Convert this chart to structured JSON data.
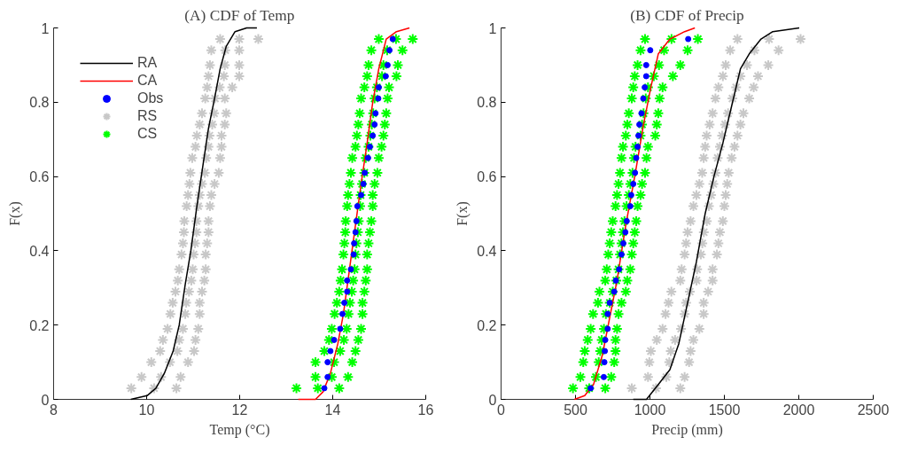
{
  "chart_data": [
    {
      "type": "line",
      "title": "(A) CDF of Temp",
      "xlabel": "Temp (°C)",
      "ylabel": "F(x)",
      "xlim": [
        8,
        16
      ],
      "xticks": [
        8,
        10,
        12,
        14,
        16
      ],
      "ylim": [
        0,
        1
      ],
      "yticks": [
        0,
        0.2,
        0.4,
        0.6,
        0.8,
        1
      ],
      "grid": false,
      "legend": "top left",
      "series": [
        {
          "name": "RA",
          "marker": "none",
          "color": "#000000",
          "x": [
            9.66,
            10.01,
            10.2,
            10.38,
            10.57,
            10.7,
            10.83,
            10.95,
            11.08,
            11.21,
            11.33,
            11.46,
            11.58,
            11.71,
            11.9,
            12.15,
            12.37
          ],
          "values": [
            0,
            0.01,
            0.03,
            0.07,
            0.13,
            0.2,
            0.31,
            0.4,
            0.52,
            0.63,
            0.73,
            0.81,
            0.89,
            0.95,
            0.99,
            1.0,
            1.0
          ]
        },
        {
          "name": "CA",
          "marker": "none",
          "color": "#ff0000",
          "x": [
            13.26,
            13.63,
            13.79,
            13.95,
            14.11,
            14.23,
            14.36,
            14.49,
            14.61,
            14.74,
            14.86,
            14.99,
            15.15,
            15.37,
            15.65
          ],
          "values": [
            0,
            0.0,
            0.02,
            0.07,
            0.15,
            0.23,
            0.35,
            0.47,
            0.58,
            0.69,
            0.8,
            0.89,
            0.97,
            0.99,
            1.0
          ]
        },
        {
          "name": "Obs",
          "type": "scatter",
          "marker": "circle",
          "color": "#0000ff",
          "x": [
            13.82,
            13.89,
            13.89,
            13.95,
            14.03,
            14.16,
            14.21,
            14.25,
            14.31,
            14.31,
            14.39,
            14.45,
            14.46,
            14.49,
            14.51,
            14.53,
            14.61,
            14.66,
            14.69,
            14.76,
            14.8,
            14.86,
            14.9,
            14.92,
            14.98,
            14.99,
            15.14,
            15.18,
            15.22,
            15.29
          ],
          "values": [
            0.03,
            0.06,
            0.1,
            0.13,
            0.16,
            0.19,
            0.23,
            0.26,
            0.29,
            0.32,
            0.35,
            0.39,
            0.42,
            0.45,
            0.48,
            0.52,
            0.55,
            0.58,
            0.61,
            0.65,
            0.68,
            0.71,
            0.74,
            0.77,
            0.81,
            0.84,
            0.87,
            0.9,
            0.94,
            0.97
          ]
        },
        {
          "name": "RS",
          "type": "scatter",
          "marker": "cross",
          "color": "#c8c8c8",
          "x": [
            9.67,
            10.16,
            10.64,
            9.89,
            10.31,
            10.73,
            10.1,
            10.5,
            10.89,
            10.29,
            10.66,
            11.02,
            10.35,
            10.7,
            11.05,
            10.45,
            10.78,
            11.11,
            10.51,
            10.83,
            11.14,
            10.56,
            10.85,
            11.14,
            10.62,
            10.91,
            11.19,
            10.67,
            10.96,
            11.24,
            10.7,
            10.99,
            11.27,
            10.75,
            11.01,
            11.27,
            10.78,
            11.04,
            11.3,
            10.8,
            11.07,
            11.33,
            10.81,
            11.07,
            11.33,
            10.86,
            11.11,
            11.36,
            10.89,
            11.14,
            11.39,
            10.92,
            11.19,
            11.46,
            10.94,
            11.25,
            11.55,
            10.98,
            11.28,
            11.58,
            11.05,
            11.33,
            11.61,
            11.08,
            11.35,
            11.61,
            11.14,
            11.41,
            11.68,
            11.19,
            11.45,
            11.71,
            11.26,
            11.47,
            11.68,
            11.3,
            11.57,
            11.84,
            11.33,
            11.66,
            11.99,
            11.36,
            11.68,
            11.99,
            11.39,
            11.69,
            11.99,
            11.58,
            11.99,
            12.4
          ],
          "values": [
            0.03,
            0.03,
            0.03,
            0.06,
            0.06,
            0.06,
            0.1,
            0.1,
            0.1,
            0.13,
            0.13,
            0.13,
            0.16,
            0.16,
            0.16,
            0.19,
            0.19,
            0.19,
            0.23,
            0.23,
            0.23,
            0.26,
            0.26,
            0.26,
            0.29,
            0.29,
            0.29,
            0.32,
            0.32,
            0.32,
            0.35,
            0.35,
            0.35,
            0.39,
            0.39,
            0.39,
            0.42,
            0.42,
            0.42,
            0.45,
            0.45,
            0.45,
            0.48,
            0.48,
            0.48,
            0.52,
            0.52,
            0.52,
            0.55,
            0.55,
            0.55,
            0.58,
            0.58,
            0.58,
            0.61,
            0.61,
            0.61,
            0.65,
            0.65,
            0.65,
            0.68,
            0.68,
            0.68,
            0.71,
            0.71,
            0.71,
            0.74,
            0.74,
            0.74,
            0.77,
            0.77,
            0.77,
            0.81,
            0.81,
            0.81,
            0.84,
            0.84,
            0.84,
            0.87,
            0.87,
            0.87,
            0.9,
            0.9,
            0.9,
            0.94,
            0.94,
            0.94,
            0.97,
            0.97,
            0.97
          ]
        },
        {
          "name": "CS",
          "type": "scatter",
          "marker": "cross",
          "color": "#00ff00",
          "x": [
            13.22,
            13.68,
            14.14,
            13.63,
            13.98,
            14.33,
            13.63,
            14.03,
            14.42,
            13.82,
            14.16,
            14.49,
            13.92,
            14.24,
            14.55,
            13.98,
            14.3,
            14.61,
            14.04,
            14.34,
            14.64,
            14.09,
            14.37,
            14.64,
            14.14,
            14.41,
            14.68,
            14.17,
            14.44,
            14.71,
            14.2,
            14.47,
            14.74,
            14.23,
            14.49,
            14.74,
            14.25,
            14.51,
            14.77,
            14.27,
            14.54,
            14.8,
            14.28,
            14.56,
            14.83,
            14.31,
            14.59,
            14.86,
            14.33,
            14.6,
            14.86,
            14.36,
            14.63,
            14.9,
            14.39,
            14.68,
            14.96,
            14.42,
            14.71,
            14.99,
            14.49,
            14.77,
            15.05,
            14.52,
            14.81,
            15.09,
            14.55,
            14.84,
            15.12,
            14.58,
            14.87,
            15.15,
            14.61,
            14.9,
            15.18,
            14.68,
            14.95,
            15.21,
            14.74,
            15.06,
            15.37,
            14.77,
            15.09,
            15.4,
            14.83,
            15.17,
            15.5,
            14.99,
            15.36,
            15.72
          ],
          "values": [
            0.03,
            0.03,
            0.03,
            0.06,
            0.06,
            0.06,
            0.1,
            0.1,
            0.1,
            0.13,
            0.13,
            0.13,
            0.16,
            0.16,
            0.16,
            0.19,
            0.19,
            0.19,
            0.23,
            0.23,
            0.23,
            0.26,
            0.26,
            0.26,
            0.29,
            0.29,
            0.29,
            0.32,
            0.32,
            0.32,
            0.35,
            0.35,
            0.35,
            0.39,
            0.39,
            0.39,
            0.42,
            0.42,
            0.42,
            0.45,
            0.45,
            0.45,
            0.48,
            0.48,
            0.48,
            0.52,
            0.52,
            0.52,
            0.55,
            0.55,
            0.55,
            0.58,
            0.58,
            0.58,
            0.61,
            0.61,
            0.61,
            0.65,
            0.65,
            0.65,
            0.68,
            0.68,
            0.68,
            0.71,
            0.71,
            0.71,
            0.74,
            0.74,
            0.74,
            0.77,
            0.77,
            0.77,
            0.81,
            0.81,
            0.81,
            0.84,
            0.84,
            0.84,
            0.87,
            0.87,
            0.87,
            0.9,
            0.9,
            0.9,
            0.94,
            0.94,
            0.94,
            0.97,
            0.97,
            0.97
          ]
        }
      ]
    },
    {
      "type": "line",
      "title": "(B) CDF of Precip",
      "xlabel": "Precip (mm)",
      "ylabel": "F(x)",
      "xlim": [
        0,
        2500
      ],
      "xticks": [
        0,
        500,
        1000,
        1500,
        2000,
        2500
      ],
      "ylim": [
        0,
        1
      ],
      "yticks": [
        0,
        0.2,
        0.4,
        0.6,
        0.8,
        1
      ],
      "grid": false,
      "series": [
        {
          "marker": "none",
          "color": "#000000",
          "x": [
            888,
            977,
            1056,
            1134,
            1194,
            1253,
            1312,
            1371,
            1430,
            1490,
            1549,
            1608,
            1667,
            1746,
            1825,
            2003
          ],
          "values": [
            0,
            0.0,
            0.04,
            0.08,
            0.15,
            0.26,
            0.37,
            0.5,
            0.6,
            0.69,
            0.79,
            0.89,
            0.93,
            0.97,
            0.99,
            1.0
          ]
        },
        {
          "marker": "none",
          "color": "#ff0000",
          "x": [
            493,
            562,
            621,
            681,
            720,
            779,
            838,
            898,
            957,
            1006,
            1056,
            1134,
            1233,
            1302
          ],
          "values": [
            0,
            0.01,
            0.04,
            0.12,
            0.2,
            0.32,
            0.47,
            0.6,
            0.74,
            0.84,
            0.93,
            0.97,
            0.99,
            1.0
          ]
        },
        {
          "type": "scatter",
          "marker": "circle",
          "color": "#0000ff",
          "x": [
            602,
            690,
            694,
            697,
            700,
            716,
            716,
            730,
            760,
            771,
            793,
            809,
            821,
            835,
            844,
            868,
            874,
            888,
            900,
            908,
            917,
            923,
            929,
            943,
            955,
            965,
            975,
            975,
            1002,
            1257
          ],
          "values": [
            0.03,
            0.06,
            0.1,
            0.13,
            0.16,
            0.19,
            0.23,
            0.26,
            0.29,
            0.32,
            0.35,
            0.39,
            0.42,
            0.45,
            0.48,
            0.52,
            0.55,
            0.58,
            0.61,
            0.65,
            0.68,
            0.71,
            0.74,
            0.77,
            0.81,
            0.84,
            0.87,
            0.9,
            0.94,
            0.97
          ]
        },
        {
          "type": "scatter",
          "marker": "cross",
          "color": "#c8c8c8",
          "x": [
            878,
            1041,
            1204,
            987,
            1110,
            1233,
            996,
            1130,
            1263,
            1006,
            1140,
            1273,
            1046,
            1169,
            1292,
            1085,
            1209,
            1332,
            1105,
            1233,
            1361,
            1125,
            1243,
            1361,
            1144,
            1268,
            1391,
            1204,
            1313,
            1421,
            1213,
            1317,
            1421,
            1233,
            1342,
            1450,
            1243,
            1352,
            1460,
            1253,
            1362,
            1470,
            1273,
            1382,
            1490,
            1292,
            1396,
            1500,
            1312,
            1411,
            1509,
            1332,
            1426,
            1519,
            1351,
            1440,
            1529,
            1361,
            1455,
            1549,
            1371,
            1470,
            1568,
            1381,
            1485,
            1588,
            1401,
            1505,
            1608,
            1421,
            1525,
            1628,
            1440,
            1554,
            1667,
            1460,
            1579,
            1697,
            1490,
            1608,
            1726,
            1509,
            1652,
            1795,
            1539,
            1702,
            1864,
            1588,
            1800,
            2012
          ],
          "values": [
            0.03,
            0.03,
            0.03,
            0.06,
            0.06,
            0.06,
            0.1,
            0.1,
            0.1,
            0.13,
            0.13,
            0.13,
            0.16,
            0.16,
            0.16,
            0.19,
            0.19,
            0.19,
            0.23,
            0.23,
            0.23,
            0.26,
            0.26,
            0.26,
            0.29,
            0.29,
            0.29,
            0.32,
            0.32,
            0.32,
            0.35,
            0.35,
            0.35,
            0.39,
            0.39,
            0.39,
            0.42,
            0.42,
            0.42,
            0.45,
            0.45,
            0.45,
            0.48,
            0.48,
            0.48,
            0.52,
            0.52,
            0.52,
            0.55,
            0.55,
            0.55,
            0.58,
            0.58,
            0.58,
            0.61,
            0.61,
            0.61,
            0.65,
            0.65,
            0.65,
            0.68,
            0.68,
            0.68,
            0.71,
            0.71,
            0.71,
            0.74,
            0.74,
            0.74,
            0.77,
            0.77,
            0.77,
            0.81,
            0.81,
            0.81,
            0.84,
            0.84,
            0.84,
            0.87,
            0.87,
            0.87,
            0.9,
            0.9,
            0.9,
            0.94,
            0.94,
            0.94,
            0.97,
            0.97,
            0.97
          ]
        },
        {
          "type": "scatter",
          "marker": "cross",
          "color": "#00ff00",
          "x": [
            483,
            592,
            700,
            533,
            637,
            740,
            552,
            656,
            760,
            562,
            666,
            769,
            582,
            676,
            769,
            602,
            691,
            779,
            618,
            704,
            789,
            651,
            730,
            809,
            661,
            750,
            838,
            700,
            774,
            848,
            710,
            789,
            868,
            720,
            799,
            878,
            730,
            809,
            888,
            740,
            819,
            898,
            750,
            829,
            908,
            769,
            843,
            917,
            779,
            858,
            937,
            789,
            868,
            947,
            799,
            883,
            967,
            809,
            893,
            977,
            819,
            903,
            987,
            838,
            937,
            1036,
            848,
            947,
            1046,
            858,
            957,
            1056,
            878,
            972,
            1065,
            888,
            987,
            1085,
            898,
            1026,
            1154,
            917,
            1061,
            1204,
            937,
            1095,
            1253,
            967,
            1145,
            1322
          ],
          "values": [
            0.03,
            0.03,
            0.03,
            0.06,
            0.06,
            0.06,
            0.1,
            0.1,
            0.1,
            0.13,
            0.13,
            0.13,
            0.16,
            0.16,
            0.16,
            0.19,
            0.19,
            0.19,
            0.23,
            0.23,
            0.23,
            0.26,
            0.26,
            0.26,
            0.29,
            0.29,
            0.29,
            0.32,
            0.32,
            0.32,
            0.35,
            0.35,
            0.35,
            0.39,
            0.39,
            0.39,
            0.42,
            0.42,
            0.42,
            0.45,
            0.45,
            0.45,
            0.48,
            0.48,
            0.48,
            0.52,
            0.52,
            0.52,
            0.55,
            0.55,
            0.55,
            0.58,
            0.58,
            0.58,
            0.61,
            0.61,
            0.61,
            0.65,
            0.65,
            0.65,
            0.68,
            0.68,
            0.68,
            0.71,
            0.71,
            0.71,
            0.74,
            0.74,
            0.74,
            0.77,
            0.77,
            0.77,
            0.81,
            0.81,
            0.81,
            0.84,
            0.84,
            0.84,
            0.87,
            0.87,
            0.87,
            0.9,
            0.9,
            0.9,
            0.94,
            0.94,
            0.94,
            0.97,
            0.97,
            0.97
          ]
        }
      ]
    }
  ]
}
